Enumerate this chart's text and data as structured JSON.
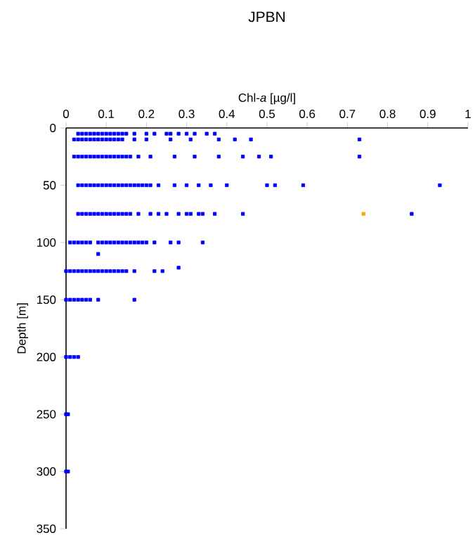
{
  "chart_data": {
    "type": "scatter",
    "title": "JPBN",
    "xlabel": "Chl-*a* [µg/l]",
    "ylabel": "Depth [m]",
    "xlim": [
      0,
      1
    ],
    "xticks": [
      0,
      0.1,
      0.2,
      0.3,
      0.4,
      0.5,
      0.6,
      0.7,
      0.8,
      0.9,
      1
    ],
    "ylim": [
      350,
      0
    ],
    "yticks": [
      0,
      50,
      100,
      150,
      200,
      250,
      300,
      350
    ],
    "marker": "square",
    "grid": false,
    "series": [
      {
        "color": "#0000ff",
        "x": [
          0.03,
          0.04,
          0.05,
          0.06,
          0.07,
          0.08,
          0.09,
          0.1,
          0.11,
          0.12,
          0.13,
          0.14,
          0.15,
          0.17,
          0.2,
          0.22,
          0.25,
          0.26,
          0.28,
          0.3,
          0.32,
          0.35,
          0.37,
          0.02,
          0.03,
          0.04,
          0.05,
          0.06,
          0.07,
          0.08,
          0.09,
          0.1,
          0.11,
          0.12,
          0.13,
          0.14,
          0.17,
          0.2,
          0.26,
          0.31,
          0.38,
          0.42,
          0.46,
          0.73,
          0.02,
          0.03,
          0.04,
          0.05,
          0.06,
          0.07,
          0.08,
          0.09,
          0.1,
          0.11,
          0.12,
          0.13,
          0.14,
          0.15,
          0.16,
          0.18,
          0.21,
          0.27,
          0.32,
          0.38,
          0.44,
          0.48,
          0.51,
          0.73,
          0.03,
          0.04,
          0.05,
          0.06,
          0.07,
          0.08,
          0.09,
          0.1,
          0.11,
          0.12,
          0.13,
          0.14,
          0.15,
          0.16,
          0.17,
          0.18,
          0.19,
          0.2,
          0.21,
          0.23,
          0.27,
          0.3,
          0.33,
          0.36,
          0.4,
          0.5,
          0.52,
          0.59,
          0.93,
          0.03,
          0.04,
          0.05,
          0.06,
          0.07,
          0.08,
          0.09,
          0.1,
          0.11,
          0.12,
          0.13,
          0.14,
          0.15,
          0.16,
          0.18,
          0.21,
          0.23,
          0.25,
          0.28,
          0.3,
          0.31,
          0.33,
          0.34,
          0.37,
          0.44,
          0.86,
          0.01,
          0.02,
          0.03,
          0.04,
          0.05,
          0.06,
          0.08,
          0.09,
          0.1,
          0.11,
          0.12,
          0.13,
          0.14,
          0.15,
          0.16,
          0.17,
          0.18,
          0.19,
          0.2,
          0.22,
          0.26,
          0.28,
          0.34,
          0.08,
          0,
          0.01,
          0.02,
          0.03,
          0.04,
          0.05,
          0.06,
          0.07,
          0.08,
          0.09,
          0.1,
          0.11,
          0.12,
          0.13,
          0.14,
          0.15,
          0.17,
          0.22,
          0.24,
          0.28,
          0,
          0.01,
          0.02,
          0.03,
          0.04,
          0.05,
          0.06,
          0.08,
          0.17,
          0,
          0.01,
          0.02,
          0.03,
          0,
          0.005,
          0,
          0.005
        ],
        "values": [
          5,
          5,
          5,
          5,
          5,
          5,
          5,
          5,
          5,
          5,
          5,
          5,
          5,
          5,
          5,
          5,
          5,
          5,
          5,
          5,
          5,
          5,
          5,
          10,
          10,
          10,
          10,
          10,
          10,
          10,
          10,
          10,
          10,
          10,
          10,
          10,
          10,
          10,
          10,
          10,
          10,
          10,
          10,
          10,
          25,
          25,
          25,
          25,
          25,
          25,
          25,
          25,
          25,
          25,
          25,
          25,
          25,
          25,
          25,
          25,
          25,
          25,
          25,
          25,
          25,
          25,
          25,
          25,
          50,
          50,
          50,
          50,
          50,
          50,
          50,
          50,
          50,
          50,
          50,
          50,
          50,
          50,
          50,
          50,
          50,
          50,
          50,
          50,
          50,
          50,
          50,
          50,
          50,
          50,
          50,
          50,
          50,
          75,
          75,
          75,
          75,
          75,
          75,
          75,
          75,
          75,
          75,
          75,
          75,
          75,
          75,
          75,
          75,
          75,
          75,
          75,
          75,
          75,
          75,
          75,
          75,
          75,
          75,
          100,
          100,
          100,
          100,
          100,
          100,
          100,
          100,
          100,
          100,
          100,
          100,
          100,
          100,
          100,
          100,
          100,
          100,
          100,
          100,
          100,
          100,
          100,
          110,
          125,
          125,
          125,
          125,
          125,
          125,
          125,
          125,
          125,
          125,
          125,
          125,
          125,
          125,
          125,
          125,
          125,
          125,
          125,
          122,
          150,
          150,
          150,
          150,
          150,
          150,
          150,
          150,
          150,
          200,
          200,
          200,
          200,
          250,
          250,
          300,
          300
        ]
      },
      {
        "color": "#ffa500",
        "x": [
          0.74
        ],
        "values": [
          75
        ]
      }
    ]
  }
}
